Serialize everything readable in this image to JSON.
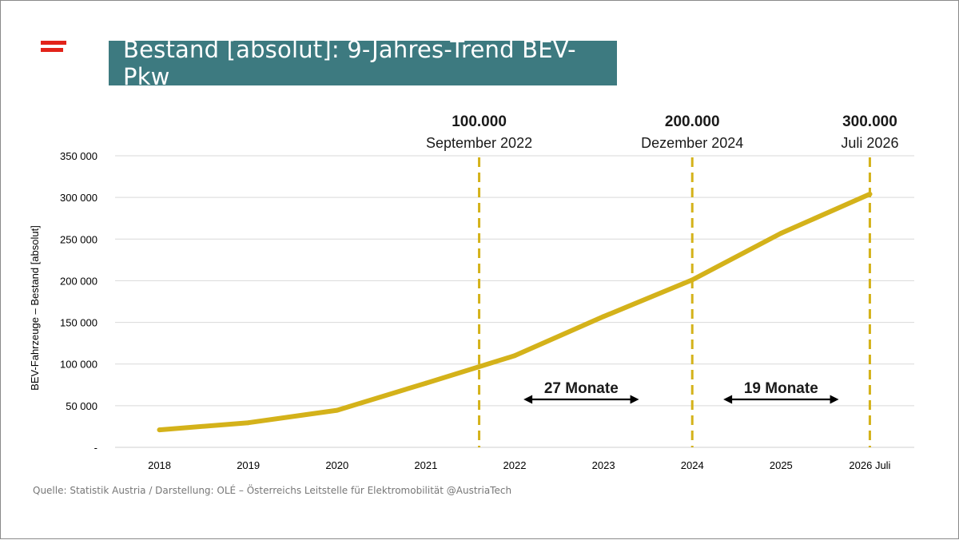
{
  "title": "Bestand [absolut]: 9-Jahres-Trend BEV-Pkw",
  "source": "Quelle: Statistik Austria / Darstellung: OLÉ – Österreichs Leitstelle für Elektromobilität @AustriaTech",
  "colors": {
    "title_bg": "#3d7a80",
    "line": "#d4b21a",
    "flag": "#e2231a",
    "grid": "#d9d9d9",
    "text": "#000000"
  },
  "chart_data": {
    "type": "line",
    "categories": [
      "2018",
      "2019",
      "2020",
      "2021",
      "2022",
      "2023",
      "2024",
      "2025",
      "2026 Juli"
    ],
    "values": [
      21000,
      29500,
      44500,
      77000,
      110000,
      157000,
      201000,
      257000,
      304000
    ],
    "ylabel": "BEV-Fahrzeuge – Bestand [absolut]",
    "xlabel": "",
    "ylim": [
      0,
      350000
    ],
    "yticks": [
      {
        "value": 0,
        "label": "-"
      },
      {
        "value": 50000,
        "label": "50 000"
      },
      {
        "value": 100000,
        "label": "100 000"
      },
      {
        "value": 150000,
        "label": "150 000"
      },
      {
        "value": 200000,
        "label": "200 000"
      },
      {
        "value": 250000,
        "label": "250 000"
      },
      {
        "value": 300000,
        "label": "300 000"
      },
      {
        "value": 350000,
        "label": "350 000"
      }
    ],
    "grid": true,
    "milestones": [
      {
        "x": 3.6,
        "value": "100.000",
        "date": "September 2022"
      },
      {
        "x": 6.0,
        "value": "200.000",
        "date": "Dezember 2024"
      },
      {
        "x": 8.0,
        "value": "300.000",
        "date": "Juli 2026"
      }
    ],
    "intervals": [
      {
        "from": 4.1,
        "to": 5.4,
        "label": "27 Monate"
      },
      {
        "from": 6.35,
        "to": 7.65,
        "label": "19 Monate"
      }
    ]
  }
}
